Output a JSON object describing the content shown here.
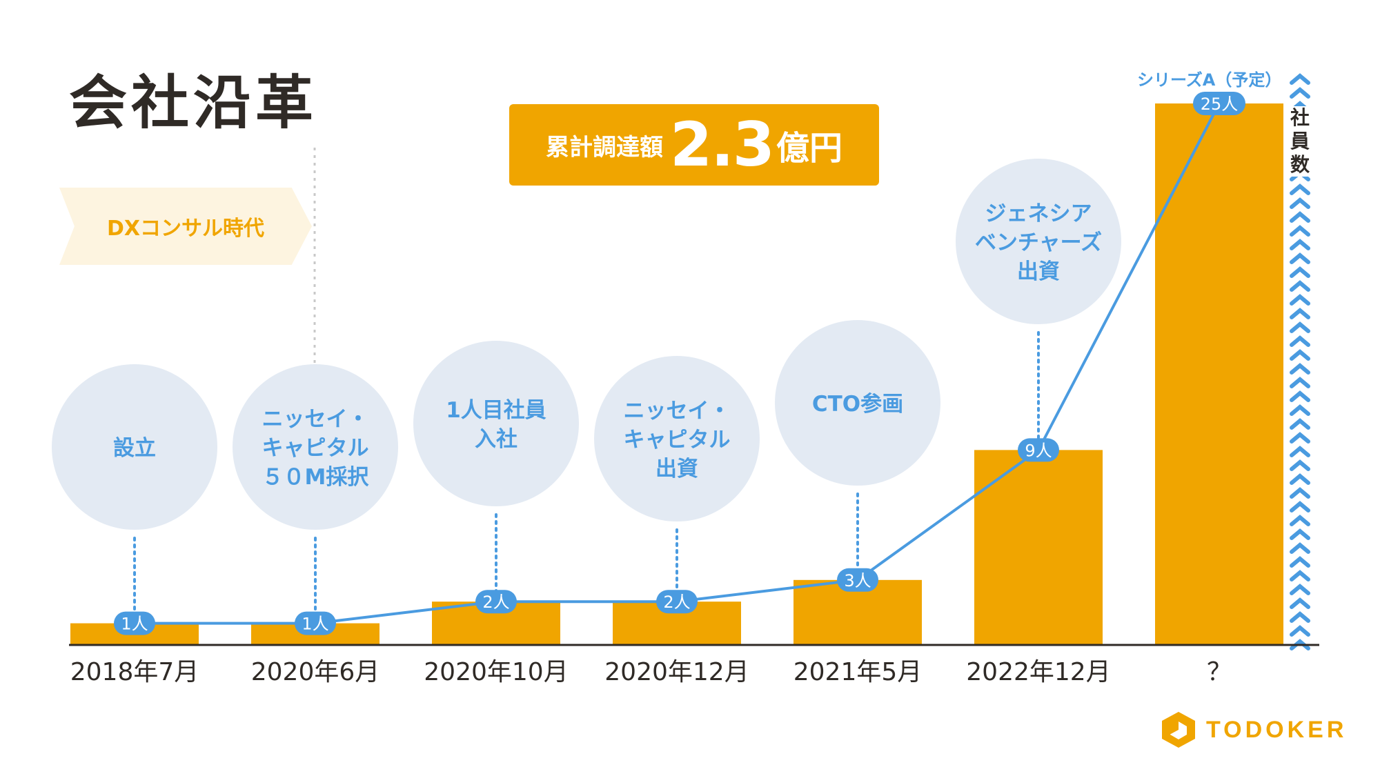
{
  "title": "会社沿革",
  "era_label": "DXコンサル時代",
  "funding": {
    "label": "累計調達額",
    "amount": "2.3",
    "unit": "億円"
  },
  "series_label": "シリーズA（予定）",
  "employees_label": "社員数",
  "logo_text": "TODOKER",
  "colors": {
    "accent": "#f0a500",
    "line": "#4a9be0",
    "bubble": "#e3eaf3",
    "axis": "#2f2a26"
  },
  "chart_data": {
    "type": "bar",
    "categories": [
      "2018年7月",
      "2020年6月",
      "2020年10月",
      "2020年12月",
      "2021年5月",
      "2022年12月",
      "？"
    ],
    "values": [
      1,
      1,
      2,
      2,
      3,
      9,
      25
    ],
    "value_labels": [
      "1人",
      "1人",
      "2人",
      "2人",
      "3人",
      "9人",
      "25人"
    ],
    "ylim": [
      0,
      25
    ],
    "grid": false,
    "events": [
      [
        "設立"
      ],
      [
        "ニッセイ・",
        "キャピタル",
        "５０M採択"
      ],
      [
        "1人目社員",
        "入社"
      ],
      [
        "ニッセイ・",
        "キャピタル",
        "出資"
      ],
      [
        "CTO参画"
      ],
      [
        "ジェネシア",
        "ベンチャーズ",
        "出資"
      ],
      []
    ]
  }
}
